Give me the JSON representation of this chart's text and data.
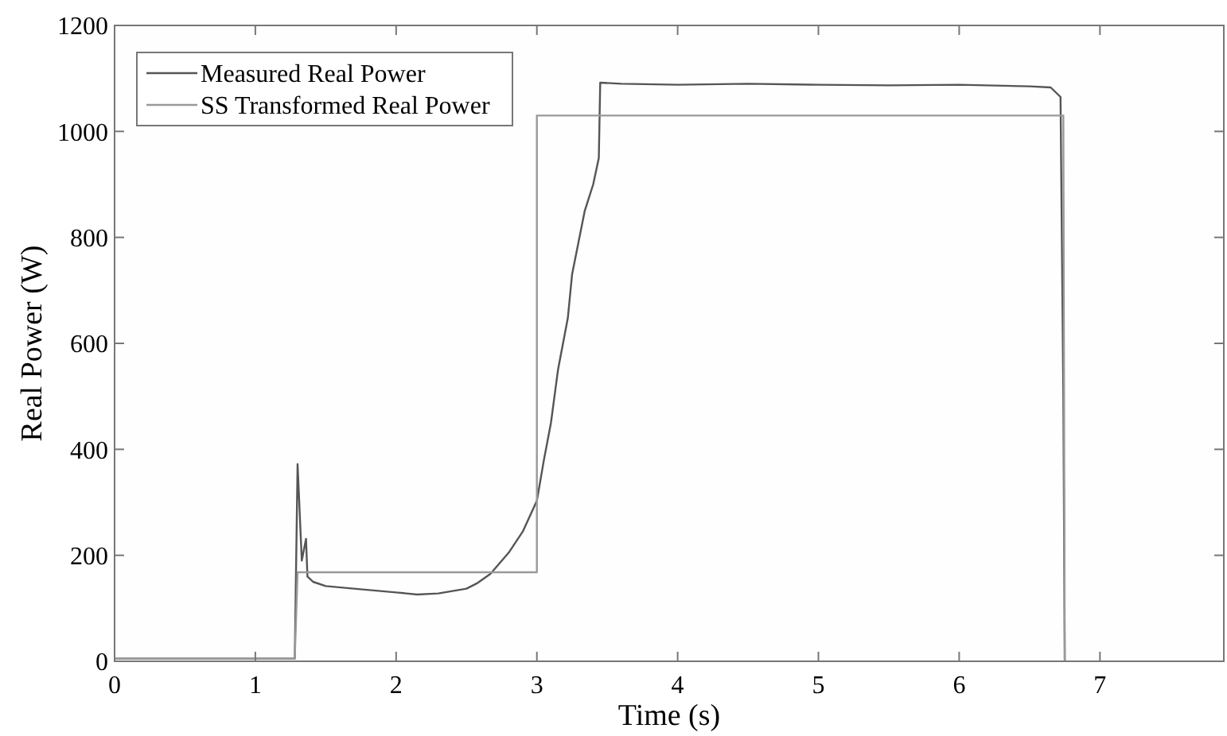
{
  "chart_data": {
    "type": "line",
    "xlabel": "Time (s)",
    "ylabel": "Real Power (W)",
    "xlim": [
      0,
      7.88
    ],
    "ylim": [
      0,
      1200
    ],
    "xticks": [
      0,
      1,
      2,
      3,
      4,
      5,
      6,
      7
    ],
    "yticks": [
      0,
      200,
      400,
      600,
      800,
      1000,
      1200
    ],
    "grid": false,
    "legend": "top left",
    "line_style": "solid",
    "marker": "none",
    "series": [
      {
        "name": "Measured Real Power",
        "color": "#555555",
        "x": [
          0,
          0.5,
          1.0,
          1.28,
          1.3,
          1.33,
          1.36,
          1.37,
          1.39,
          1.41,
          1.5,
          1.7,
          2.0,
          2.15,
          2.3,
          2.5,
          2.58,
          2.67,
          2.8,
          2.9,
          3.0,
          3.05,
          3.1,
          3.15,
          3.22,
          3.25,
          3.34,
          3.4,
          3.44,
          3.45,
          3.6,
          4.0,
          4.5,
          5.0,
          5.5,
          6.0,
          6.5,
          6.65,
          6.72,
          6.74,
          6.75
        ],
        "values": [
          5,
          5,
          5,
          5,
          372,
          190,
          231,
          160,
          155,
          150,
          142,
          137,
          130,
          126,
          128,
          137,
          148,
          165,
          205,
          245,
          303,
          380,
          450,
          550,
          648,
          730,
          850,
          900,
          950,
          1092,
          1090,
          1088,
          1090,
          1088,
          1087,
          1088,
          1085,
          1083,
          1065,
          500,
          0
        ]
      },
      {
        "name": "SS Transformed Real Power",
        "color": "#999999",
        "x": [
          0,
          1.28,
          1.3,
          3.0,
          3.0,
          6.74,
          6.75
        ],
        "values": [
          5,
          5,
          168,
          168,
          1030,
          1030,
          0
        ]
      }
    ]
  }
}
